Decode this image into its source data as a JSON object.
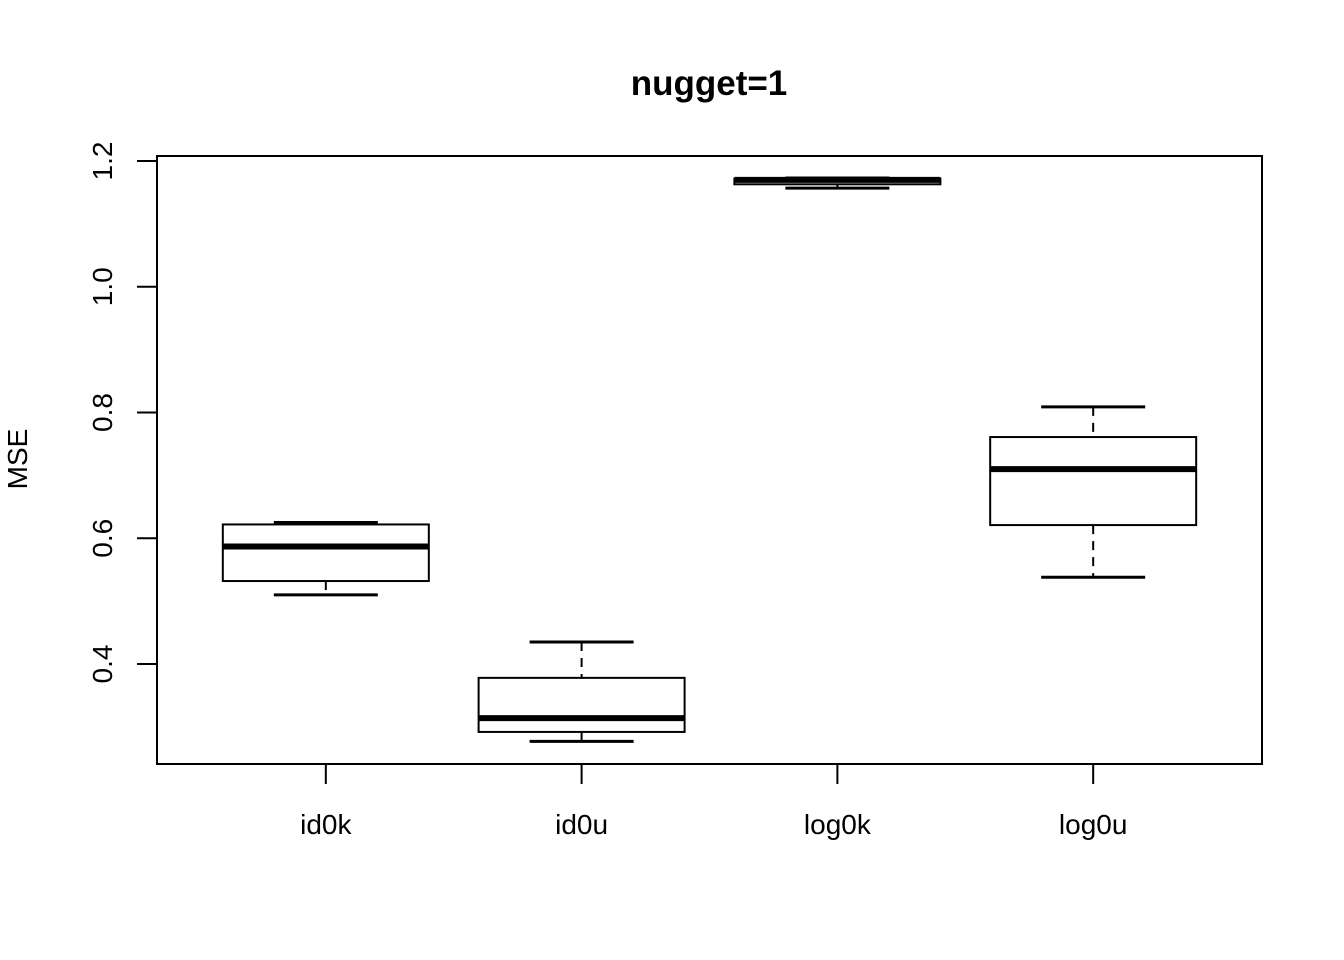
{
  "chart_data": {
    "type": "boxplot",
    "title": "nugget=1",
    "xlabel": "",
    "ylabel": "MSE",
    "categories": [
      "id0k",
      "id0u",
      "log0k",
      "log0u"
    ],
    "yticks": [
      0.4,
      0.6,
      0.8,
      1.0,
      1.2
    ],
    "ytick_labels": [
      "0.4",
      "0.6",
      "0.8",
      "1.0",
      "1.2"
    ],
    "ylim": [
      0.241,
      1.208
    ],
    "grid": false,
    "legend": false,
    "orientation": "vertical",
    "whisker_style": "dashed",
    "series": [
      {
        "name": "id0k",
        "lower_whisker": 0.51,
        "q1": 0.532,
        "median": 0.587,
        "q3": 0.622,
        "upper_whisker": 0.625,
        "outliers": []
      },
      {
        "name": "id0u",
        "lower_whisker": 0.277,
        "q1": 0.292,
        "median": 0.314,
        "q3": 0.378,
        "upper_whisker": 0.435,
        "outliers": []
      },
      {
        "name": "log0k",
        "lower_whisker": 1.157,
        "q1": 1.163,
        "median": 1.17,
        "q3": 1.172,
        "upper_whisker": 1.173,
        "outliers": []
      },
      {
        "name": "log0u",
        "lower_whisker": 0.538,
        "q1": 0.621,
        "median": 0.71,
        "q3": 0.761,
        "upper_whisker": 0.809,
        "outliers": []
      }
    ],
    "colors": {
      "stroke": "#000000",
      "box_fill": "#ffffff",
      "background": "#ffffff"
    }
  }
}
